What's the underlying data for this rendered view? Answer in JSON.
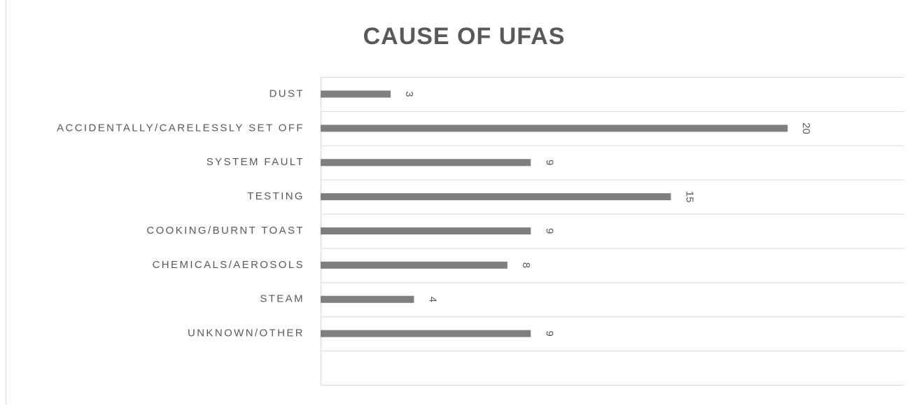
{
  "chart_data": {
    "type": "bar",
    "orientation": "horizontal",
    "title": "CAUSE OF UFAS",
    "categories": [
      "DUST",
      "ACCIDENTALLY/CARELESSLY SET OFF",
      "SYSTEM FAULT",
      "TESTING",
      "COOKING/BURNT TOAST",
      "CHEMICALS/AEROSOLS",
      "STEAM",
      "UNKNOWN/OTHER",
      null
    ],
    "values": [
      3,
      20,
      9,
      15,
      9,
      8,
      4,
      9,
      null
    ],
    "color": "#7f7f7f",
    "xlim": [
      0,
      25
    ],
    "grid": true
  }
}
